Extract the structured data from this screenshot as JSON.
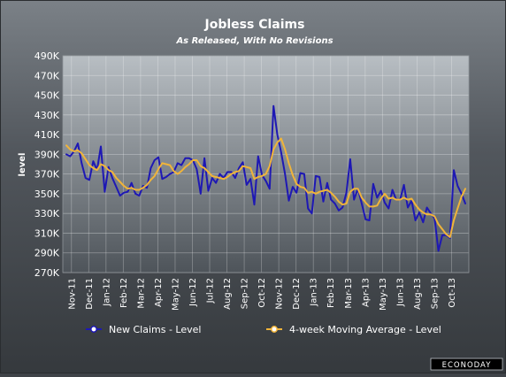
{
  "chart_data": {
    "type": "line",
    "title": "Jobless Claims",
    "subtitle": "As Released, With No Revisions",
    "xlabel": "",
    "ylabel": "level",
    "ylim": [
      270000,
      490000
    ],
    "y_ticks": [
      "270K",
      "290K",
      "310K",
      "330K",
      "350K",
      "370K",
      "390K",
      "410K",
      "430K",
      "450K",
      "470K",
      "490K"
    ],
    "x_ticks": [
      "Nov-11",
      "Dec-11",
      "Jan-12",
      "Feb-12",
      "Mar-12",
      "Apr-12",
      "May-12",
      "Jun-12",
      "Jul-12",
      "Aug-12",
      "Sep-12",
      "Oct-12",
      "Nov-12",
      "Dec-12",
      "Jan-13",
      "Feb-13",
      "Mar-13",
      "Apr-13",
      "May-13",
      "Jun-13",
      "Aug-13",
      "Sep-13",
      "Oct-13"
    ],
    "grid": true,
    "legend_position": "bottom",
    "colors": {
      "new_claims": "#1e18b4",
      "moving_average": "#f0b43a",
      "background": "#3f4348",
      "plot_background_top": "#b8bec3",
      "plot_background_bottom": "#4e545a"
    },
    "series": [
      {
        "name": "New Claims - Level",
        "values": [
          390000,
          388000,
          393000,
          401000,
          381000,
          366000,
          364000,
          383000,
          374000,
          398000,
          352000,
          377000,
          366000,
          357000,
          348000,
          351000,
          352000,
          361000,
          350000,
          348000,
          358000,
          356000,
          376000,
          384000,
          387000,
          365000,
          367000,
          370000,
          372000,
          381000,
          379000,
          386000,
          386000,
          384000,
          375000,
          350000,
          386000,
          353000,
          366000,
          361000,
          370000,
          366000,
          372000,
          372000,
          366000,
          376000,
          382000,
          359000,
          365000,
          339000,
          388000,
          369000,
          363000,
          355000,
          439000,
          410000,
          392000,
          370000,
          343000,
          357000,
          351000,
          371000,
          370000,
          335000,
          330000,
          368000,
          367000,
          342000,
          361000,
          344000,
          340000,
          333000,
          336000,
          351000,
          385000,
          344000,
          355000,
          340000,
          324000,
          323000,
          360000,
          346000,
          353000,
          341000,
          335000,
          354000,
          344000,
          344000,
          359000,
          336000,
          343000,
          323000,
          331000,
          321000,
          336000,
          330000,
          325000,
          292000,
          308000,
          308000,
          305000,
          374000,
          358000,
          350000,
          340000
        ]
      },
      {
        "name": "4-week Moving Average - Level",
        "values": [
          399000,
          395000,
          393000,
          394000,
          391000,
          385000,
          379000,
          376000,
          374000,
          380000,
          378000,
          374000,
          372000,
          366000,
          362000,
          358000,
          355000,
          356000,
          354000,
          354000,
          356000,
          359000,
          364000,
          368000,
          375000,
          381000,
          380000,
          379000,
          373000,
          370000,
          373000,
          377000,
          380000,
          384000,
          384000,
          378000,
          376000,
          372000,
          368000,
          367000,
          366000,
          365000,
          367000,
          370000,
          372000,
          373000,
          378000,
          377000,
          376000,
          365000,
          367000,
          368000,
          370000,
          378000,
          395000,
          402000,
          406000,
          395000,
          381000,
          369000,
          360000,
          357000,
          356000,
          351000,
          352000,
          350000,
          352000,
          353000,
          354000,
          351000,
          347000,
          342000,
          339000,
          340000,
          352000,
          355000,
          355000,
          346000,
          341000,
          337000,
          337000,
          338000,
          345000,
          350000,
          345000,
          346000,
          344000,
          344000,
          346000,
          344000,
          345000,
          339000,
          334000,
          331000,
          329000,
          329000,
          327000,
          319000,
          314000,
          309000,
          306000,
          323000,
          335000,
          347000,
          355000
        ]
      }
    ]
  },
  "branding": {
    "logo_text": "ECONODAY"
  }
}
